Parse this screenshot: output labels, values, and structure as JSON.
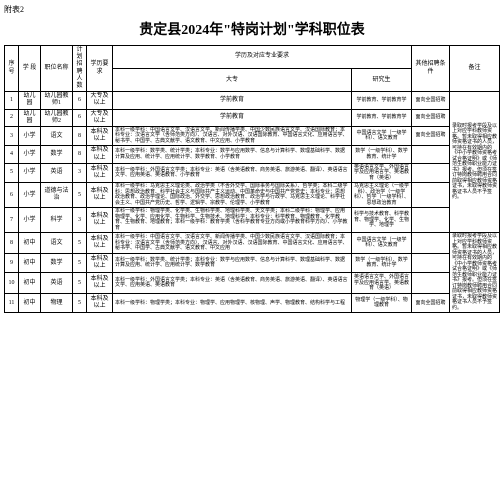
{
  "attachment": "附表2",
  "title": "贵定县2024年\"特岗计划\"学科职位表",
  "headers": {
    "seq": "序号",
    "stage": "学 段",
    "position": "职位名称",
    "plan_count": "计划招聘人数",
    "edu_req": "学历要求",
    "major_req": "学历及对应专业要求",
    "major_bachelor": "大专",
    "major_grad": "研究生",
    "other_cond": "其他招聘条件",
    "remark": "备注"
  },
  "rows": [
    {
      "seq": "1",
      "stage": "幼儿园",
      "position": "幼儿园教师1",
      "count": "6",
      "edu": "大专及以上",
      "major_b_label": "学前教育",
      "major_b": "学前教育",
      "major_g": "学前教育、学前教育学",
      "other": "面向全国招聘"
    },
    {
      "seq": "2",
      "stage": "幼儿园",
      "position": "幼儿园教师2",
      "count": "6",
      "edu": "大专及以上",
      "major_b_label": "学前教育",
      "major_b": "学前教育",
      "major_g": "学前教育、学前教育学",
      "other": "面向全国招聘"
    },
    {
      "seq": "3",
      "stage": "小学",
      "position": "语文",
      "count": "8",
      "edu": "本科及以上",
      "major_b": "本科一级学科：中国语言文学、汉语言文学、新闻传播学类、中国少数民族语言文学、汉语国际教育；本科专业：汉语言文学（含师范类方向）、汉语言、对外汉语、汉语国际教育、中国语言文化、应用语言学、秘书学、中国学、古典文献学、语文教育、中文应用、小学教育",
      "major_g": "中国语言文学（一级学科）、语文教育",
      "other": "面向全国招聘"
    },
    {
      "seq": "4",
      "stage": "小学",
      "position": "数学",
      "count": "8",
      "edu": "本科及以上",
      "major_b": "本科一级学科：数学类、统计学类；本科专业：数学与应用数学、信息与计算科学、数理基础科学、数据计算及应用、统计学、应用统计学、数学教育、小学教育",
      "major_g": "数学（一级学科）、数学教育、统计学"
    },
    {
      "seq": "5",
      "stage": "小学",
      "position": "英语",
      "count": "3",
      "edu": "本科及以上",
      "major_b": "本科一级学科：外国语言文学类；本科专业：英语（含英语教育、商务英语、旅游英语、翻译）、英语语言文学、应用英语、英语教育、小学教育",
      "major_g": "英语语言文学、外国语言学及应用语言学、英语教育（英语）"
    },
    {
      "seq": "6",
      "stage": "小学",
      "position": "道德与法治",
      "count": "5",
      "edu": "本科及以上",
      "major_b": "本科一级学科：马克思主义理论类、政治学类（不含外交学、国际事务与国际关系）、哲学类；本科二级学科：思想政治教育、科学社会主义与国际共产主义运动、中国革命史与中国共产党党史；本科专业：思想政治教育、政治学理论、国际政治、外交学、思想政治教育、政治学与行政学、马克思主义理论、科学社会主义、中国共产党历史、哲学、逻辑学、宗教学、伦理学、小学教育",
      "major_g": "马克思主义理论（一级学科）、政治学（一级学科）、哲学（一级学科）、思想政治教育"
    },
    {
      "seq": "7",
      "stage": "小学",
      "position": "科学",
      "count": "3",
      "edu": "本科及以上",
      "major_b": "本科一级学科：物理学类、化学类、生物科学类、地理科学类、天文学类；本科二级学科：物理学、应用物理学、化学、应用化学、生物科学、生物技术、地理科学；本科专业：科学教育、物理教育、化学教育、生物教育、地理教育；本科一级学科：教育学类（含科学教育专业方向或小学教育科学方向）、小学教育",
      "major_g": "科学与技术教育、科学教育、物理学、化学、生物学、地理学"
    },
    {
      "seq": "8",
      "stage": "初中",
      "position": "语文",
      "count": "5",
      "edu": "本科及以上",
      "major_b": "本科一级学科：中国语言文学、汉语言文学、新闻传播学类、中国少数民族语言文学、汉语国际教育；本科专业：汉语言文学（含师范类方向）、汉语言、对外汉语、汉语国际教育、中国语言文化、应用语言学、秘书学、中国学、古典文献学、语文教育、中文应用",
      "major_g": "中国语言文学（一级学科）、语文教育"
    },
    {
      "seq": "9",
      "stage": "初中",
      "position": "数学",
      "count": "5",
      "edu": "本科及以上",
      "major_b": "本科一级学科：数学类、统计学类；本科专业：数学与应用数学、信息与计算科学、数理基础科学、数据计算及应用、统计学、应用统计学、数学教育",
      "major_g": "数学（一级学科）、数学教育、统计学"
    },
    {
      "seq": "10",
      "stage": "初中",
      "position": "英语",
      "count": "5",
      "edu": "本科及以上",
      "major_b": "本科一级学科：外国语言文学类；本科专业：英语（含英语教育、商务英语、旅游英语、翻译）、英语语言文学、应用英语、英语教育",
      "major_g": "英语语言文学、外国语言学及应用语言学、英语教育（英语）"
    },
    {
      "seq": "11",
      "stage": "初中",
      "position": "物理",
      "count": "5",
      "edu": "本科及以上",
      "major_b": "本科一级学科：物理学类；本科专业：物理学、应用物理学、核物理、声学、物理教育、结构科学与工程",
      "major_g": "物理学（一级学科）、物理教育",
      "other": "面向全国招聘"
    }
  ],
  "remark_group1": "录取时报考学段及以上对应学科教师资格。暂未取得相应教师资格证书的人员，可持在有效期内的《中小学教师资格考试合格证明》或《师范生教师职业能力证书》报考。但须在签订特岗教师聘用合同前取得相应教师资格证书，未取得教师资格证书人员不予签约。",
  "remark_group2": "录取时报考学段及以上对应学科教师资格。暂未取得相应教师资格证书的人员，可持在有效期内的《中小学教师资格考试合格证明》或《师范生教师职业能力证书》报考。但须在签订特岗教师聘用合同前取得相应教师资格证书，未取得教师资格证书人员不予签约。"
}
